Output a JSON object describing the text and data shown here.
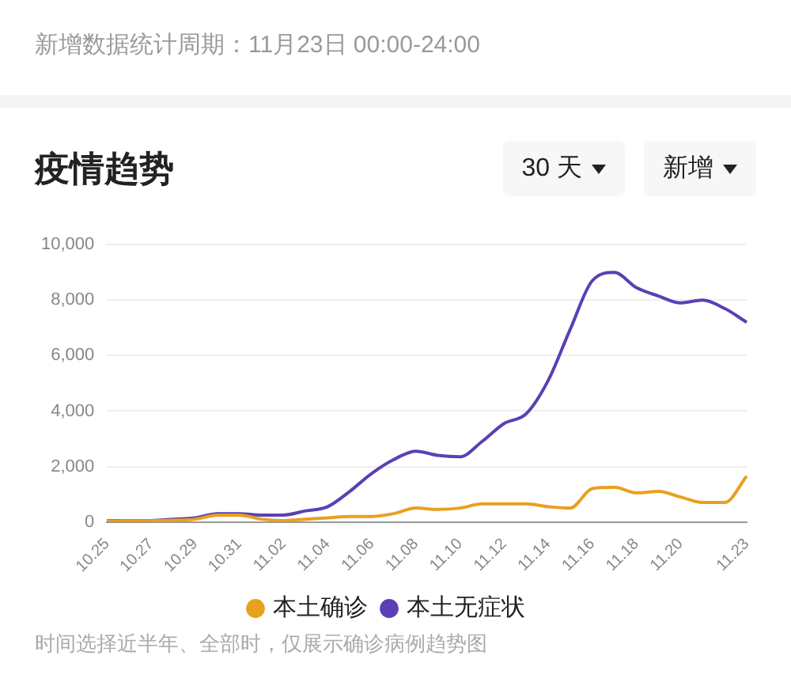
{
  "chart_data": {
    "type": "line",
    "title": "疫情趋势",
    "subtitle": "新增数据统计周期：11月23日 00:00-24:00",
    "annotations": [
      "30 天",
      "新增",
      "时间选择近半年、全部时，仅展示确诊病例趋势图"
    ],
    "categories": [
      "10.25",
      null,
      "10.27",
      null,
      "10.29",
      null,
      "10.31",
      null,
      "11.02",
      null,
      "11.04",
      null,
      "11.06",
      null,
      "11.08",
      null,
      "11.10",
      null,
      "11.12",
      null,
      "11.14",
      null,
      "11.16",
      null,
      "11.18",
      null,
      "11.20",
      null,
      null,
      "11.23"
    ],
    "series": [
      {
        "name": "本土确诊",
        "color": "#e8a020",
        "values": [
          30,
          30,
          40,
          60,
          100,
          250,
          250,
          100,
          50,
          100,
          150,
          200,
          200,
          300,
          500,
          450,
          500,
          650,
          650,
          650,
          550,
          500,
          1200,
          1250,
          1050,
          1100,
          900,
          700,
          700,
          1650
        ]
      },
      {
        "name": "本土无症状",
        "color": "#5b3fb5",
        "values": [
          50,
          40,
          50,
          100,
          150,
          300,
          300,
          250,
          250,
          400,
          550,
          1100,
          1750,
          2250,
          2550,
          2400,
          2350,
          2900,
          3550,
          3900,
          5100,
          6950,
          8700,
          9000,
          8450,
          8150,
          7900,
          8000,
          7700,
          7200
        ]
      }
    ],
    "ylim": [
      0,
      10000
    ],
    "yticks": [
      0,
      {
        "value": 2000,
        "label": "2,000"
      },
      {
        "value": 4000,
        "label": "4,000"
      },
      {
        "value": 6000,
        "label": "6,000"
      },
      {
        "value": 8000,
        "label": "8,000"
      },
      {
        "value": 10000,
        "label": "10,000"
      }
    ],
    "grid": "y",
    "legend": "bottom",
    "marker": "none",
    "line_style": "solid"
  }
}
